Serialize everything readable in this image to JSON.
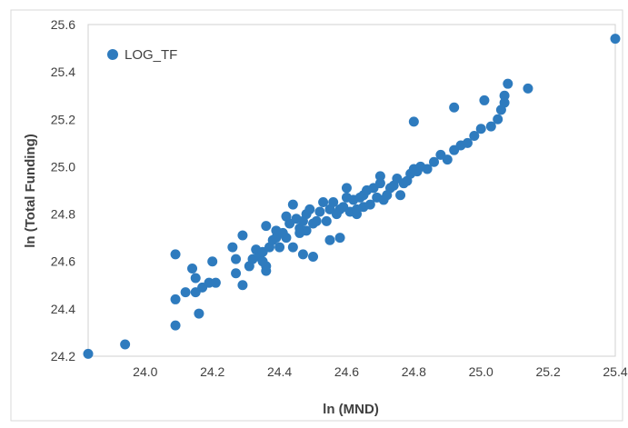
{
  "chart_data": {
    "type": "scatter",
    "xlabel": "ln (MND)",
    "ylabel": "ln (Total Funding)",
    "xlim": [
      23.83,
      25.4
    ],
    "ylim": [
      24.2,
      25.6
    ],
    "xticks": [
      "24.0",
      "24.2",
      "24.4",
      "24.6",
      "24.8",
      "25.0",
      "25.2",
      "25.4"
    ],
    "yticks": [
      "24.2",
      "24.4",
      "24.6",
      "24.8",
      "25.0",
      "25.2",
      "25.4",
      "25.6"
    ],
    "grid": false,
    "legend_position": "top-left",
    "marker_color": "#2E7BBE",
    "series": [
      {
        "name": "LOG_TF",
        "x": [
          23.83,
          23.94,
          24.09,
          24.09,
          24.09,
          24.12,
          24.14,
          24.15,
          24.16,
          24.15,
          24.17,
          24.19,
          24.2,
          24.21,
          24.26,
          24.27,
          24.27,
          24.29,
          24.29,
          24.31,
          24.32,
          24.33,
          24.34,
          24.35,
          24.36,
          24.36,
          24.37,
          24.38,
          24.39,
          24.4,
          24.41,
          24.42,
          24.43,
          24.44,
          24.45,
          24.46,
          24.47,
          24.48,
          24.48,
          24.49,
          24.5,
          24.51,
          24.52,
          24.53,
          24.54,
          24.55,
          24.56,
          24.57,
          24.58,
          24.59,
          24.6,
          24.61,
          24.62,
          24.63,
          24.64,
          24.65,
          24.66,
          24.67,
          24.68,
          24.69,
          24.7,
          24.71,
          24.72,
          24.73,
          24.74,
          24.75,
          24.76,
          24.77,
          24.78,
          24.79,
          24.8,
          24.81,
          24.82,
          24.84,
          24.86,
          24.88,
          24.9,
          24.92,
          24.94,
          24.96,
          24.98,
          25.0,
          25.03,
          25.05,
          25.07,
          25.08,
          25.14,
          25.4,
          24.8,
          24.92,
          25.01,
          25.06,
          25.07,
          24.47,
          24.5,
          24.58,
          24.46,
          24.55,
          24.65,
          24.44,
          24.36,
          24.39,
          24.35,
          24.42,
          24.63,
          24.7,
          24.66,
          24.6
        ],
        "y": [
          24.21,
          24.25,
          24.63,
          24.44,
          24.33,
          24.47,
          24.57,
          24.47,
          24.38,
          24.53,
          24.49,
          24.51,
          24.6,
          24.51,
          24.66,
          24.61,
          24.55,
          24.5,
          24.71,
          24.58,
          24.61,
          24.65,
          24.62,
          24.64,
          24.75,
          24.58,
          24.66,
          24.69,
          24.7,
          24.66,
          24.72,
          24.7,
          24.76,
          24.84,
          24.78,
          24.74,
          24.77,
          24.8,
          24.73,
          24.82,
          24.76,
          24.77,
          24.81,
          24.85,
          24.77,
          24.82,
          24.85,
          24.8,
          24.82,
          24.83,
          24.87,
          24.81,
          24.86,
          24.8,
          24.87,
          24.83,
          24.9,
          24.84,
          24.91,
          24.87,
          24.93,
          24.86,
          24.88,
          24.91,
          24.92,
          24.95,
          24.88,
          24.93,
          24.94,
          24.97,
          24.99,
          24.98,
          25.0,
          24.99,
          25.02,
          25.05,
          25.03,
          25.07,
          25.09,
          25.1,
          25.13,
          25.16,
          25.17,
          25.2,
          25.27,
          25.35,
          25.33,
          25.54,
          25.19,
          25.25,
          25.28,
          25.24,
          25.3,
          24.63,
          24.62,
          24.7,
          24.72,
          24.69,
          24.88,
          24.66,
          24.56,
          24.73,
          24.6,
          24.79,
          24.82,
          24.96,
          24.9,
          24.91
        ]
      }
    ]
  }
}
